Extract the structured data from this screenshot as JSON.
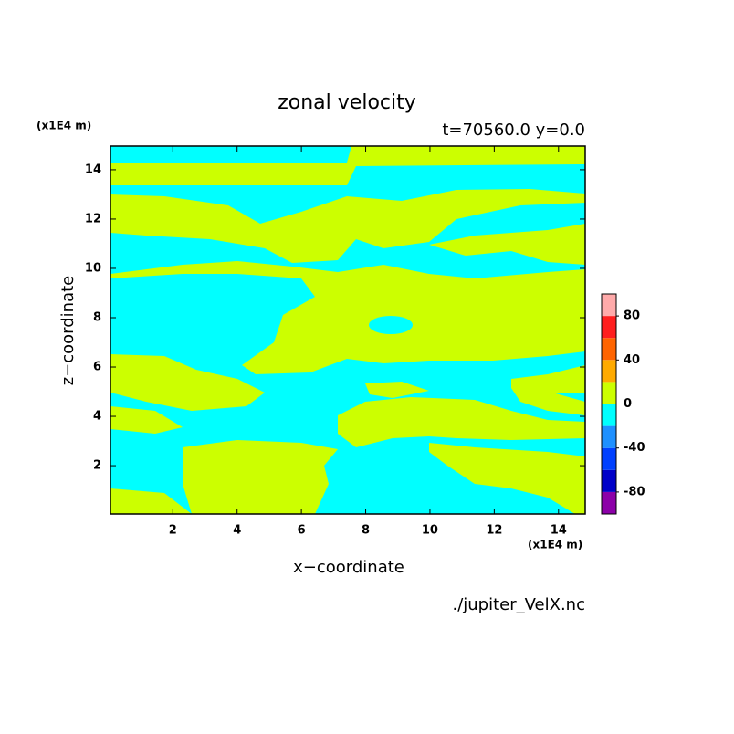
{
  "chart_data": {
    "type": "contour",
    "title": "zonal velocity",
    "subtitle": "t=70560.0 y=0.0",
    "x_label": "x−coordinate",
    "y_label": "z−coordinate",
    "x_units": "(x1E4 m)",
    "y_units": "(x1E4 m)",
    "source": "./jupiter_VelX.nc",
    "xlim": [
      0.06,
      14.83
    ],
    "ylim": [
      0.04,
      14.96
    ],
    "xticks": [
      2,
      4,
      6,
      8,
      10,
      12,
      14
    ],
    "yticks": [
      2,
      4,
      6,
      8,
      10,
      12,
      14
    ],
    "levels": [
      -100,
      -80,
      -60,
      -40,
      -20,
      0,
      20,
      40,
      60,
      80,
      100
    ],
    "level_colors": [
      "#8c00a8",
      "#0000c8",
      "#0040ff",
      "#1e90ff",
      "#00ffff",
      "#ccff00",
      "#ffaa00",
      "#ff6400",
      "#ff1e1e",
      "#ffaaaa"
    ],
    "colorbar_ticks": [
      -80,
      -40,
      0,
      40,
      80
    ]
  }
}
